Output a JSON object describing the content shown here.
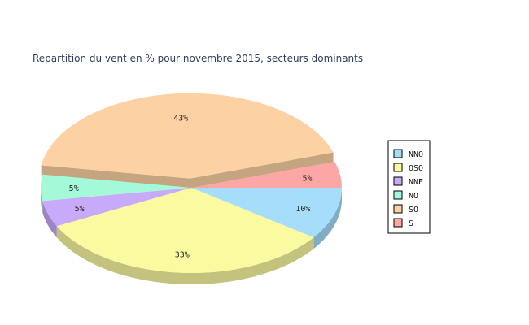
{
  "chart_data": {
    "type": "pie",
    "title": "Repartition du vent en % pour novembre 2015, secteurs dominants",
    "labels": [
      "NNO",
      "OSO",
      "NNE",
      "NO",
      "SO",
      "S"
    ],
    "values": [
      10,
      33,
      5,
      5,
      43,
      5
    ],
    "value_labels": [
      "10%",
      "33%",
      "5%",
      "5%",
      "43%",
      "5%"
    ],
    "colors": [
      "#a6ddfb",
      "#fafaa0",
      "#c8aafa",
      "#a4fad8",
      "#fcd2a4",
      "#fca6a6"
    ],
    "exploded": [
      "SO"
    ],
    "three_d": true,
    "legend_position": "right"
  }
}
